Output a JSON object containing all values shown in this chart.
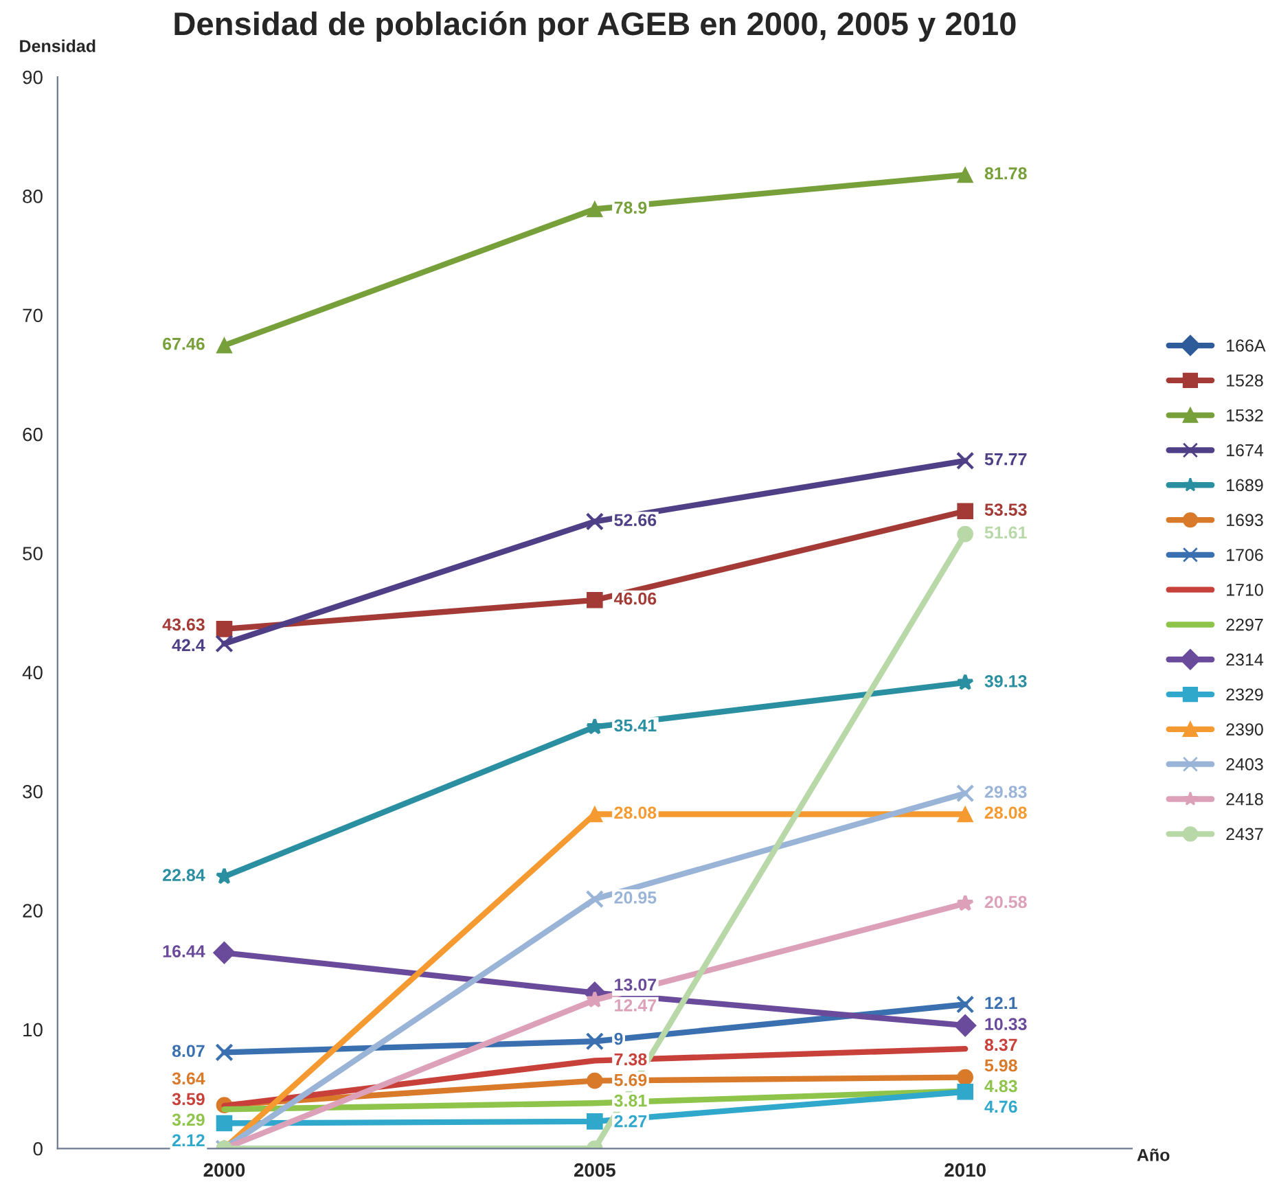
{
  "chart_data": {
    "type": "line",
    "title": "Densidad de población por AGEB en 2000, 2005 y 2010",
    "xlabel": "Año",
    "ylabel": "Densidad",
    "categories": [
      "2000",
      "2005",
      "2010"
    ],
    "ylim": [
      0,
      90
    ],
    "yticks": [
      0,
      10,
      20,
      30,
      40,
      50,
      60,
      70,
      80,
      90
    ],
    "grid": false,
    "legend": "right",
    "series": [
      {
        "name": "166A",
        "color": "#2e5c9a",
        "marker": "diamond",
        "values": [
          null,
          null,
          null
        ]
      },
      {
        "name": "1528",
        "color": "#a33a36",
        "marker": "square",
        "values": [
          43.63,
          46.06,
          53.53
        ],
        "value_labels": [
          "43.63",
          "46.06",
          "53.53"
        ]
      },
      {
        "name": "1532",
        "color": "#77a03b",
        "marker": "triangle",
        "values": [
          67.46,
          78.9,
          81.78
        ],
        "value_labels": [
          "67.46",
          "78.9",
          "81.78"
        ]
      },
      {
        "name": "1674",
        "color": "#4f3f86",
        "marker": "cross",
        "values": [
          42.4,
          52.66,
          57.77
        ],
        "value_labels": [
          "42.4",
          "52.66",
          "57.77"
        ]
      },
      {
        "name": "1689",
        "color": "#2a8fa0",
        "marker": "star",
        "values": [
          22.84,
          35.41,
          39.13
        ],
        "value_labels": [
          "22.84",
          "35.41",
          "39.13"
        ]
      },
      {
        "name": "1693",
        "color": "#d97a2a",
        "marker": "circle",
        "values": [
          3.64,
          5.69,
          5.98
        ],
        "value_labels": [
          "3.64",
          "5.69",
          "5.98"
        ]
      },
      {
        "name": "1706",
        "color": "#3a70b0",
        "marker": "cross",
        "values": [
          8.07,
          9,
          12.1
        ],
        "value_labels": [
          "8.07",
          "9",
          "12.1"
        ]
      },
      {
        "name": "1710",
        "color": "#c8403a",
        "values": [
          3.59,
          7.38,
          8.37
        ],
        "value_labels": [
          "3.59",
          "7.38",
          "8.37"
        ]
      },
      {
        "name": "2297",
        "color": "#8ec44a",
        "values": [
          3.29,
          3.81,
          4.83
        ],
        "value_labels": [
          "3.29",
          "3.81",
          "4.83"
        ]
      },
      {
        "name": "2314",
        "color": "#6a4a9a",
        "marker": "diamond",
        "values": [
          16.44,
          13.07,
          10.33
        ],
        "value_labels": [
          "16.44",
          "13.07",
          "10.33"
        ]
      },
      {
        "name": "2329",
        "color": "#30a8cc",
        "marker": "square",
        "values": [
          2.12,
          2.27,
          4.76
        ],
        "value_labels": [
          "2.12",
          "2.27",
          "4.76"
        ]
      },
      {
        "name": "2390",
        "color": "#f59a30",
        "marker": "triangle",
        "values": [
          0,
          28.08,
          28.08
        ],
        "value_labels": [
          null,
          "28.08",
          "28.08"
        ]
      },
      {
        "name": "2403",
        "color": "#9ab4d8",
        "marker": "cross",
        "values": [
          0,
          20.95,
          29.83
        ],
        "value_labels": [
          null,
          "20.95",
          "29.83"
        ]
      },
      {
        "name": "2418",
        "color": "#dca0b8",
        "marker": "star",
        "values": [
          0,
          12.47,
          20.58
        ],
        "value_labels": [
          null,
          "12.47",
          "20.58"
        ]
      },
      {
        "name": "2437",
        "color": "#b8d8a8",
        "marker": "circle",
        "values": [
          0,
          0,
          51.61
        ],
        "value_labels": [
          null,
          null,
          "51.61"
        ]
      }
    ]
  }
}
